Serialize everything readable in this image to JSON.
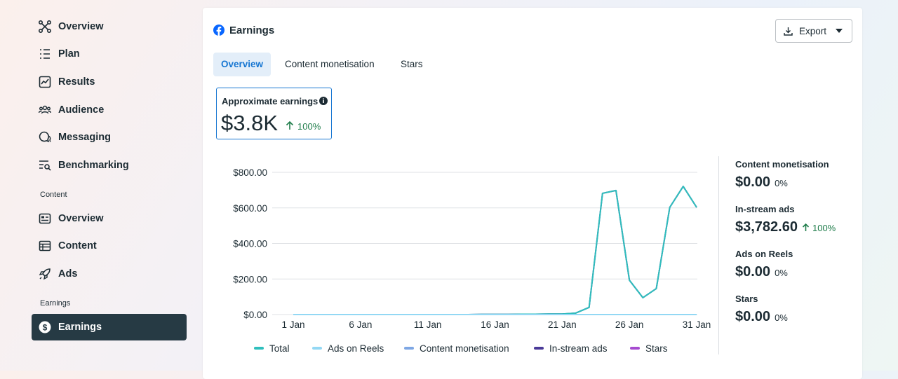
{
  "sidebar": {
    "items": [
      "Overview",
      "Plan",
      "Results",
      "Audience",
      "Messaging",
      "Benchmarking"
    ],
    "sections": [
      {
        "label": "Content",
        "items": [
          "Overview",
          "Content",
          "Ads"
        ]
      },
      {
        "label": "Earnings",
        "items": [
          "Earnings"
        ]
      }
    ]
  },
  "card": {
    "title": "Earnings",
    "export": "Export",
    "tabs": [
      "Overview",
      "Content monetisation",
      "Stars"
    ],
    "summary": {
      "label": "Approximate earnings",
      "value": "$3.8K",
      "change": "100%"
    },
    "breakdown": [
      {
        "label": "Content monetisation",
        "value": "$0.00",
        "change": "0%"
      },
      {
        "label": "In-stream ads",
        "value": "$3,782.60",
        "change": "100%"
      },
      {
        "label": "Ads on Reels",
        "value": "$0.00",
        "change": "0%"
      },
      {
        "label": "Stars",
        "value": "$0.00",
        "change": "0%"
      }
    ]
  },
  "chart_data": {
    "type": "line",
    "categories": [
      "1 Jan",
      null,
      null,
      null,
      null,
      "6 Jan",
      null,
      null,
      null,
      null,
      "11 Jan",
      null,
      null,
      null,
      null,
      "16 Jan",
      null,
      null,
      null,
      null,
      "21 Jan",
      null,
      null,
      null,
      null,
      "26 Jan",
      null,
      null,
      null,
      null,
      "31 Jan"
    ],
    "series": [
      {
        "name": "Total",
        "color": "#2fbfbd",
        "values": [
          0,
          0,
          0,
          0,
          0,
          0,
          0,
          0,
          0,
          0,
          0,
          0,
          0,
          0,
          1,
          1,
          1,
          2,
          2,
          3,
          3,
          8,
          40,
          682,
          698,
          193,
          95,
          146,
          603,
          721,
          603
        ]
      },
      {
        "name": "Ads on Reels",
        "color": "#93d8f4",
        "values": [
          0,
          0,
          0,
          0,
          0,
          0,
          0,
          0,
          0,
          0,
          0,
          0,
          0,
          0,
          0,
          0,
          0,
          0,
          0,
          0,
          0,
          0,
          0,
          0,
          0,
          0,
          0,
          0,
          0,
          0,
          0
        ]
      },
      {
        "name": "Content monetisation",
        "color": "#7ea7e4",
        "values": [
          0,
          0,
          0,
          0,
          0,
          0,
          0,
          0,
          0,
          0,
          0,
          0,
          0,
          0,
          0,
          0,
          0,
          0,
          0,
          0,
          0,
          0,
          0,
          0,
          0,
          0,
          0,
          0,
          0,
          0,
          0
        ]
      },
      {
        "name": "In-stream ads",
        "color": "#4a3a98",
        "values": [
          0,
          0,
          0,
          0,
          0,
          0,
          0,
          0,
          0,
          0,
          0,
          0,
          0,
          0,
          1,
          1,
          1,
          2,
          2,
          3,
          3,
          8,
          40,
          682,
          698,
          193,
          95,
          146,
          603,
          721,
          603
        ]
      },
      {
        "name": "Stars",
        "color": "#a64bd0",
        "values": [
          0,
          0,
          0,
          0,
          0,
          0,
          0,
          0,
          0,
          0,
          0,
          0,
          0,
          0,
          0,
          0,
          0,
          0,
          0,
          0,
          0,
          0,
          0,
          0,
          0,
          0,
          0,
          0,
          0,
          0,
          0
        ]
      }
    ],
    "ylim": [
      0,
      800
    ],
    "yticks": [
      {
        "value": 0,
        "label": "$0.00"
      },
      {
        "value": 200,
        "label": "$200.00"
      },
      {
        "value": 400,
        "label": "$400.00"
      },
      {
        "value": 600,
        "label": "$600.00"
      },
      {
        "value": 800,
        "label": "$800.00"
      }
    ],
    "grid": true
  }
}
